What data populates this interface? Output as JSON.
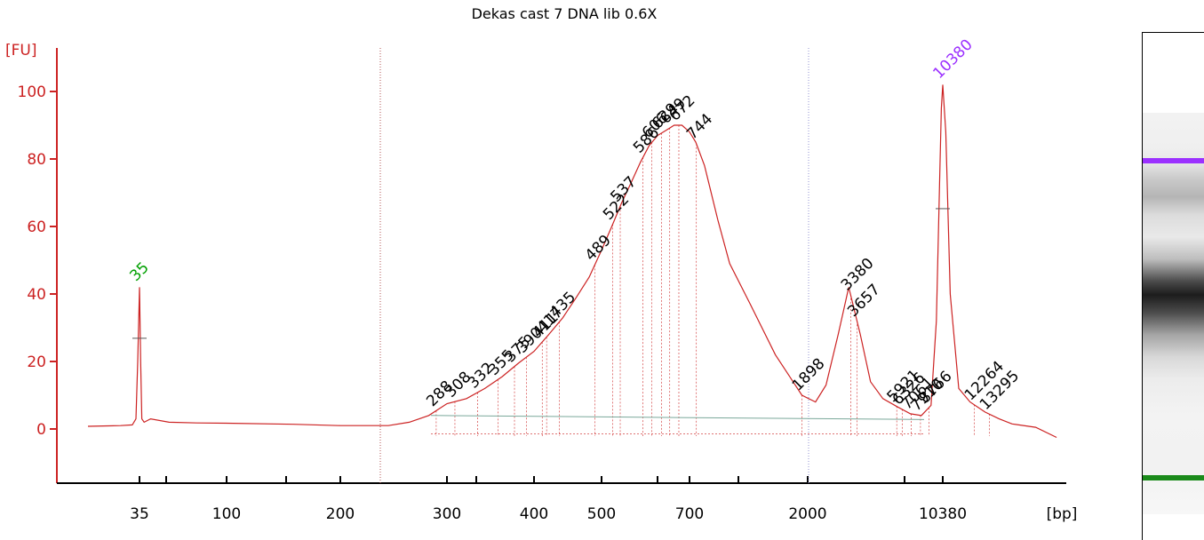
{
  "chart_data": {
    "type": "line",
    "title": "Dekas cast 7 DNA lib 0.6X",
    "ylabel": "[FU]",
    "xlabel": "[bp]",
    "ylim": [
      -15,
      113
    ],
    "yticks": [
      0,
      20,
      40,
      60,
      80,
      100
    ],
    "xtick_labels": [
      "35",
      "100",
      "200",
      "300",
      "400",
      "500",
      "700",
      "2000",
      "10380"
    ],
    "series": [
      {
        "x": [
          23,
          26,
          30,
          33,
          34,
          34.5,
          35,
          35.5,
          36,
          37,
          40,
          50,
          70,
          100,
          150,
          200,
          240,
          260,
          280,
          300,
          320,
          340,
          360,
          380,
          400,
          420,
          440,
          460,
          480,
          500,
          520,
          540,
          560,
          580,
          600,
          620,
          640,
          660,
          680,
          700,
          740,
          800,
          900,
          1000,
          1200,
          1500,
          1900,
          2200,
          2500,
          2900,
          3300,
          3800,
          4300,
          5000,
          6000,
          7000,
          8000,
          9000,
          9600,
          10000,
          10200,
          10380,
          10550,
          10800,
          11300,
          12000,
          13000,
          14000,
          15000,
          17000,
          19000
        ],
        "values": [
          0.8,
          0.9,
          1.0,
          1.2,
          3.0,
          20.0,
          42.0,
          20.0,
          3.0,
          2.0,
          3.0,
          2.0,
          1.8,
          1.7,
          1.4,
          1.0,
          1.0,
          2.0,
          4.0,
          7.5,
          9.0,
          12.0,
          15.5,
          19.5,
          23.0,
          28.0,
          33.0,
          39.0,
          45.0,
          53.0,
          60.0,
          67.0,
          73.0,
          79.0,
          84.0,
          87.0,
          88.5,
          90.0,
          90.0,
          88.0,
          85.0,
          78.0,
          62.0,
          49.0,
          37.0,
          22.0,
          10.0,
          8.0,
          13.0,
          28.0,
          42.0,
          28.0,
          14.0,
          9.0,
          6.5,
          4.5,
          4.0,
          7.0,
          32.0,
          75.0,
          95.0,
          102.0,
          88.0,
          40.0,
          12.0,
          8.0,
          5.0,
          3.0,
          1.5,
          0.5,
          -2.5
        ]
      }
    ],
    "markers": [
      {
        "label": "35",
        "x": 35,
        "y": 42,
        "color": "#00a000"
      },
      {
        "label": "10380",
        "x": 10380,
        "y": 102,
        "color": "#9b30ff"
      }
    ],
    "peak_labels": [
      "288",
      "308",
      "332",
      "355",
      "375",
      "390",
      "411",
      "417",
      "435",
      "489",
      "522",
      "537",
      "586",
      "606",
      "629",
      "649",
      "672",
      "744",
      "1898",
      "3380",
      "3657",
      "5921",
      "6326",
      "7061",
      "7910",
      "8766",
      "12264",
      "13295"
    ]
  }
}
